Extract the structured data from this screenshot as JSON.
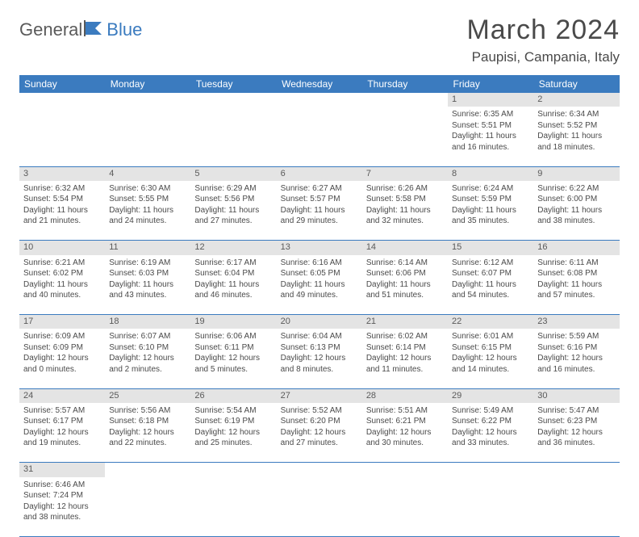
{
  "logo": {
    "part1": "General",
    "part2": "Blue"
  },
  "title": "March 2024",
  "location": "Paupisi, Campania, Italy",
  "colors": {
    "header_bg": "#3b7bbf",
    "header_fg": "#ffffff",
    "daynum_bg": "#e4e4e4",
    "text": "#4a4a4a",
    "border": "#3b7bbf"
  },
  "dayHeaders": [
    "Sunday",
    "Monday",
    "Tuesday",
    "Wednesday",
    "Thursday",
    "Friday",
    "Saturday"
  ],
  "weeks": [
    [
      null,
      null,
      null,
      null,
      null,
      {
        "n": "1",
        "sunrise": "6:35 AM",
        "sunset": "5:51 PM",
        "day_h": "11",
        "day_m": "16"
      },
      {
        "n": "2",
        "sunrise": "6:34 AM",
        "sunset": "5:52 PM",
        "day_h": "11",
        "day_m": "18"
      }
    ],
    [
      {
        "n": "3",
        "sunrise": "6:32 AM",
        "sunset": "5:54 PM",
        "day_h": "11",
        "day_m": "21"
      },
      {
        "n": "4",
        "sunrise": "6:30 AM",
        "sunset": "5:55 PM",
        "day_h": "11",
        "day_m": "24"
      },
      {
        "n": "5",
        "sunrise": "6:29 AM",
        "sunset": "5:56 PM",
        "day_h": "11",
        "day_m": "27"
      },
      {
        "n": "6",
        "sunrise": "6:27 AM",
        "sunset": "5:57 PM",
        "day_h": "11",
        "day_m": "29"
      },
      {
        "n": "7",
        "sunrise": "6:26 AM",
        "sunset": "5:58 PM",
        "day_h": "11",
        "day_m": "32"
      },
      {
        "n": "8",
        "sunrise": "6:24 AM",
        "sunset": "5:59 PM",
        "day_h": "11",
        "day_m": "35"
      },
      {
        "n": "9",
        "sunrise": "6:22 AM",
        "sunset": "6:00 PM",
        "day_h": "11",
        "day_m": "38"
      }
    ],
    [
      {
        "n": "10",
        "sunrise": "6:21 AM",
        "sunset": "6:02 PM",
        "day_h": "11",
        "day_m": "40"
      },
      {
        "n": "11",
        "sunrise": "6:19 AM",
        "sunset": "6:03 PM",
        "day_h": "11",
        "day_m": "43"
      },
      {
        "n": "12",
        "sunrise": "6:17 AM",
        "sunset": "6:04 PM",
        "day_h": "11",
        "day_m": "46"
      },
      {
        "n": "13",
        "sunrise": "6:16 AM",
        "sunset": "6:05 PM",
        "day_h": "11",
        "day_m": "49"
      },
      {
        "n": "14",
        "sunrise": "6:14 AM",
        "sunset": "6:06 PM",
        "day_h": "11",
        "day_m": "51"
      },
      {
        "n": "15",
        "sunrise": "6:12 AM",
        "sunset": "6:07 PM",
        "day_h": "11",
        "day_m": "54"
      },
      {
        "n": "16",
        "sunrise": "6:11 AM",
        "sunset": "6:08 PM",
        "day_h": "11",
        "day_m": "57"
      }
    ],
    [
      {
        "n": "17",
        "sunrise": "6:09 AM",
        "sunset": "6:09 PM",
        "day_h": "12",
        "day_m": "0"
      },
      {
        "n": "18",
        "sunrise": "6:07 AM",
        "sunset": "6:10 PM",
        "day_h": "12",
        "day_m": "2"
      },
      {
        "n": "19",
        "sunrise": "6:06 AM",
        "sunset": "6:11 PM",
        "day_h": "12",
        "day_m": "5"
      },
      {
        "n": "20",
        "sunrise": "6:04 AM",
        "sunset": "6:13 PM",
        "day_h": "12",
        "day_m": "8"
      },
      {
        "n": "21",
        "sunrise": "6:02 AM",
        "sunset": "6:14 PM",
        "day_h": "12",
        "day_m": "11"
      },
      {
        "n": "22",
        "sunrise": "6:01 AM",
        "sunset": "6:15 PM",
        "day_h": "12",
        "day_m": "14"
      },
      {
        "n": "23",
        "sunrise": "5:59 AM",
        "sunset": "6:16 PM",
        "day_h": "12",
        "day_m": "16"
      }
    ],
    [
      {
        "n": "24",
        "sunrise": "5:57 AM",
        "sunset": "6:17 PM",
        "day_h": "12",
        "day_m": "19"
      },
      {
        "n": "25",
        "sunrise": "5:56 AM",
        "sunset": "6:18 PM",
        "day_h": "12",
        "day_m": "22"
      },
      {
        "n": "26",
        "sunrise": "5:54 AM",
        "sunset": "6:19 PM",
        "day_h": "12",
        "day_m": "25"
      },
      {
        "n": "27",
        "sunrise": "5:52 AM",
        "sunset": "6:20 PM",
        "day_h": "12",
        "day_m": "27"
      },
      {
        "n": "28",
        "sunrise": "5:51 AM",
        "sunset": "6:21 PM",
        "day_h": "12",
        "day_m": "30"
      },
      {
        "n": "29",
        "sunrise": "5:49 AM",
        "sunset": "6:22 PM",
        "day_h": "12",
        "day_m": "33"
      },
      {
        "n": "30",
        "sunrise": "5:47 AM",
        "sunset": "6:23 PM",
        "day_h": "12",
        "day_m": "36"
      }
    ],
    [
      {
        "n": "31",
        "sunrise": "6:46 AM",
        "sunset": "7:24 PM",
        "day_h": "12",
        "day_m": "38"
      },
      null,
      null,
      null,
      null,
      null,
      null
    ]
  ],
  "labels": {
    "sunrise": "Sunrise: ",
    "sunset": "Sunset: ",
    "daylight_pre": "Daylight: ",
    "hours": " hours",
    "and": "and ",
    "minutes": " minutes."
  }
}
